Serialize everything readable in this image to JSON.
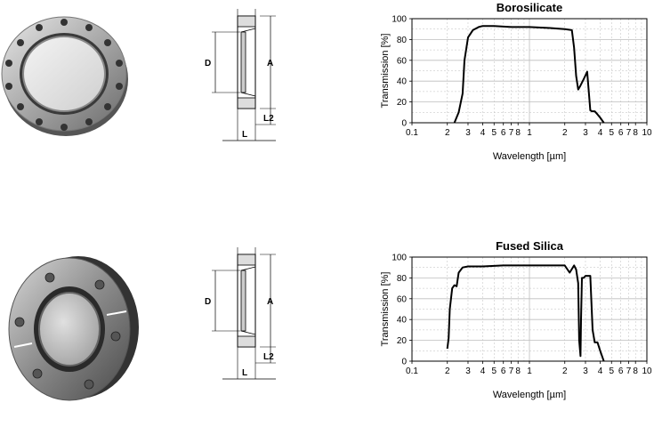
{
  "panels": [
    {
      "id": "top",
      "viewport_shape": "round-flange",
      "drawing_labels": {
        "a": "A",
        "d": "D",
        "l": "L",
        "l2": "L2"
      },
      "chart": {
        "type": "line",
        "title": "Borosilicate",
        "xlabel": "Wavelength [µm]",
        "ylabel": "Transmission [%]",
        "xscale": "log",
        "xlim": [
          0.1,
          10
        ],
        "ylim": [
          0,
          100
        ],
        "x_tick_labels": [
          "0.1",
          "2",
          "3",
          "4",
          "5",
          "6",
          "7",
          "8",
          "1",
          "2",
          "3",
          "4",
          "5",
          "6",
          "7",
          "8",
          "10"
        ],
        "y_ticks": [
          0,
          20,
          40,
          60,
          80,
          100
        ],
        "grid": true,
        "series": [
          {
            "color": "#000000",
            "x": [
              0.23,
              0.25,
              0.27,
              0.28,
              0.3,
              0.33,
              0.37,
              0.4,
              0.5,
              0.7,
              1.0,
              1.5,
              2.0,
              2.3,
              2.4,
              2.5,
              2.6,
              2.7,
              2.9,
              3.1,
              3.3,
              3.4,
              3.6,
              3.8,
              4.0,
              4.3
            ],
            "y": [
              0,
              10,
              28,
              60,
              82,
              89,
              92,
              93,
              93,
              92,
              92,
              91,
              90,
              89,
              72,
              45,
              32,
              35,
              42,
              49,
              12,
              11,
              11,
              8,
              5,
              0
            ]
          }
        ]
      }
    },
    {
      "id": "bottom",
      "viewport_shape": "rotatable-flange",
      "drawing_labels": {
        "a": "A",
        "d": "D",
        "l": "L",
        "l2": "L2"
      },
      "chart": {
        "type": "line",
        "title": "Fused Silica",
        "xlabel": "Wavelength [µm]",
        "ylabel": "Transmission [%]",
        "xscale": "log",
        "xlim": [
          0.1,
          10
        ],
        "ylim": [
          0,
          100
        ],
        "x_tick_labels": [
          "0.1",
          "2",
          "3",
          "4",
          "5",
          "6",
          "7",
          "8",
          "1",
          "2",
          "3",
          "4",
          "5",
          "6",
          "7",
          "8",
          "10"
        ],
        "y_ticks": [
          0,
          20,
          40,
          60,
          80,
          100
        ],
        "grid": true,
        "series": [
          {
            "color": "#000000",
            "x": [
              0.2,
              0.205,
              0.21,
              0.22,
              0.23,
              0.24,
              0.25,
              0.27,
              0.3,
              0.4,
              0.6,
              1.0,
              1.5,
              2.0,
              2.2,
              2.4,
              2.5,
              2.6,
              2.65,
              2.72,
              2.75,
              2.8,
              2.9,
              3.0,
              3.3,
              3.45,
              3.6,
              3.8,
              4.0,
              4.3
            ],
            "y": [
              12,
              22,
              50,
              70,
              73,
              72,
              85,
              90,
              91,
              91,
              92,
              92,
              92,
              92,
              85,
              92,
              88,
              75,
              20,
              5,
              40,
              80,
              80,
              82,
              82,
              30,
              18,
              18,
              10,
              0
            ]
          }
        ]
      }
    }
  ]
}
